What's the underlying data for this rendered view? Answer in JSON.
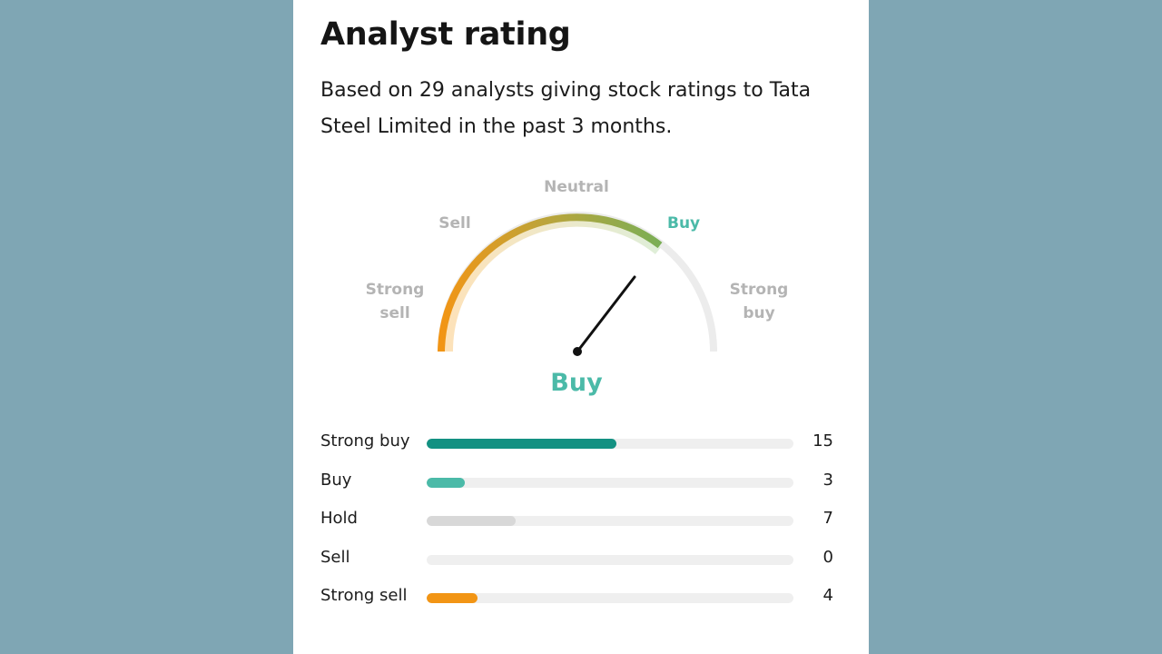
{
  "header": {
    "title": "Analyst rating",
    "description": "Based on 29 analysts giving stock ratings to Tata Steel Limited in the past 3 months."
  },
  "gauge": {
    "labels": {
      "strong_sell": "Strong sell",
      "sell": "Sell",
      "neutral": "Neutral",
      "buy": "Buy",
      "strong_buy": "Strong buy"
    },
    "result": "Buy",
    "active_color": "#4bbaa8"
  },
  "ratings": [
    {
      "label": "Strong buy",
      "count": "15",
      "value": 15,
      "color": "#139182"
    },
    {
      "label": "Buy",
      "count": "3",
      "value": 3,
      "color": "#4bbaa8"
    },
    {
      "label": "Hold",
      "count": "7",
      "value": 7,
      "color": "#d8d8d8"
    },
    {
      "label": "Sell",
      "count": "0",
      "value": 0,
      "color": "#f0a23b"
    },
    {
      "label": "Strong sell",
      "count": "4",
      "value": 4,
      "color": "#f29515"
    }
  ]
}
